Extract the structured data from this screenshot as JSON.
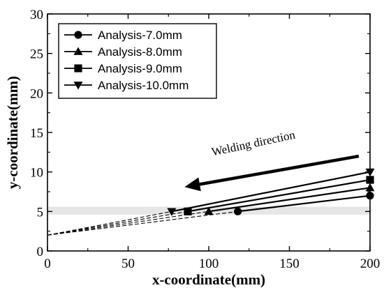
{
  "chart_data": {
    "type": "line",
    "title": "",
    "xlabel": "x-coordinate(mm)",
    "ylabel": "y-coordinate(mm)",
    "xlim": [
      0,
      200
    ],
    "ylim": [
      0,
      30
    ],
    "xticks": [
      "0",
      "50",
      "100",
      "150",
      "200"
    ],
    "yticks": [
      "0",
      "5",
      "10",
      "15",
      "20",
      "25",
      "30"
    ],
    "grid": false,
    "legend_position": "top-left",
    "band": {
      "y_from": 4.6,
      "y_to": 5.6,
      "color": "#e6e6e6"
    },
    "common_origin": {
      "x": 0,
      "y": 2
    },
    "series": [
      {
        "name": "Analysis-7.0mm",
        "marker": "circle",
        "x_start": 118,
        "y_start": 5.0,
        "x_end": 200,
        "y_end": 7.0
      },
      {
        "name": "Analysis-8.0mm",
        "marker": "triangle-up",
        "x_start": 100,
        "y_start": 5.0,
        "x_end": 200,
        "y_end": 8.0
      },
      {
        "name": "Analysis-9.0mm",
        "marker": "square",
        "x_start": 87,
        "y_start": 5.0,
        "x_end": 200,
        "y_end": 9.0
      },
      {
        "name": "Analysis-10.0mm",
        "marker": "triangle-down",
        "x_start": 77,
        "y_start": 5.0,
        "x_end": 200,
        "y_end": 10.0
      }
    ],
    "annotation": {
      "text": "Welding direction",
      "arrow_from": [
        193,
        12.0
      ],
      "arrow_to": [
        85,
        8.1
      ]
    }
  }
}
